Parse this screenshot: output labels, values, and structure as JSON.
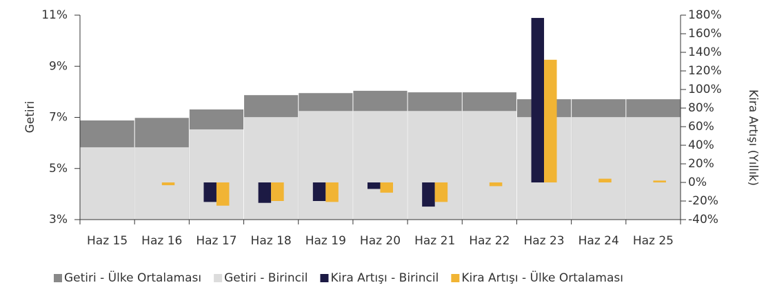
{
  "chart_data": {
    "type": "bar",
    "y_label": "Getiri",
    "y2_label": "Kira Artışı (Yıllık)",
    "categories": [
      "Haz 15",
      "Haz 16",
      "Haz 17",
      "Haz 18",
      "Haz 19",
      "Haz 20",
      "Haz 21",
      "Haz 22",
      "Haz 23",
      "Haz 24",
      "Haz 25"
    ],
    "ylim": [
      3,
      11
    ],
    "yticks": [
      {
        "value": 3,
        "label": "3%"
      },
      {
        "value": 5,
        "label": "5%"
      },
      {
        "value": 7,
        "label": "7%"
      },
      {
        "value": 9,
        "label": "9%"
      },
      {
        "value": 11,
        "label": "11%"
      }
    ],
    "y2lim": [
      -40,
      180
    ],
    "y2ticks": [
      {
        "value": -40,
        "label": "-40%"
      },
      {
        "value": -20,
        "label": "-20%"
      },
      {
        "value": 0,
        "label": "0%"
      },
      {
        "value": 20,
        "label": "20%"
      },
      {
        "value": 40,
        "label": "40%"
      },
      {
        "value": 60,
        "label": "60%"
      },
      {
        "value": 80,
        "label": "80%"
      },
      {
        "value": 100,
        "label": "100%"
      },
      {
        "value": 120,
        "label": "120%"
      },
      {
        "value": 140,
        "label": "140%"
      },
      {
        "value": 160,
        "label": "160%"
      },
      {
        "value": 180,
        "label": "180%"
      }
    ],
    "series": [
      {
        "name": "Getiri - Ülke Ortalaması",
        "color": "#898989",
        "axis": "y",
        "values": [
          6.88,
          6.98,
          7.31,
          7.87,
          7.95,
          8.04,
          7.98,
          7.98,
          7.71,
          7.71,
          7.71
        ]
      },
      {
        "name": "Getiri - Birincil",
        "color": "#dcdcdc",
        "axis": "y",
        "values": [
          5.83,
          5.83,
          6.53,
          7.01,
          7.25,
          7.25,
          7.25,
          7.25,
          7.01,
          7.01,
          7.01
        ]
      },
      {
        "name": "Kira Artışı - Birincil",
        "color": "#1c1a44",
        "axis": "y2",
        "values": [
          null,
          null,
          -21,
          -22,
          -20,
          -7,
          -26,
          null,
          177,
          null,
          null
        ]
      },
      {
        "name": "Kira Artışı - Ülke Ortalaması",
        "color": "#f1b434",
        "axis": "y2",
        "values": [
          null,
          -3,
          -25,
          -20,
          -21,
          -11,
          -21,
          -4,
          132,
          4,
          2
        ]
      }
    ]
  }
}
